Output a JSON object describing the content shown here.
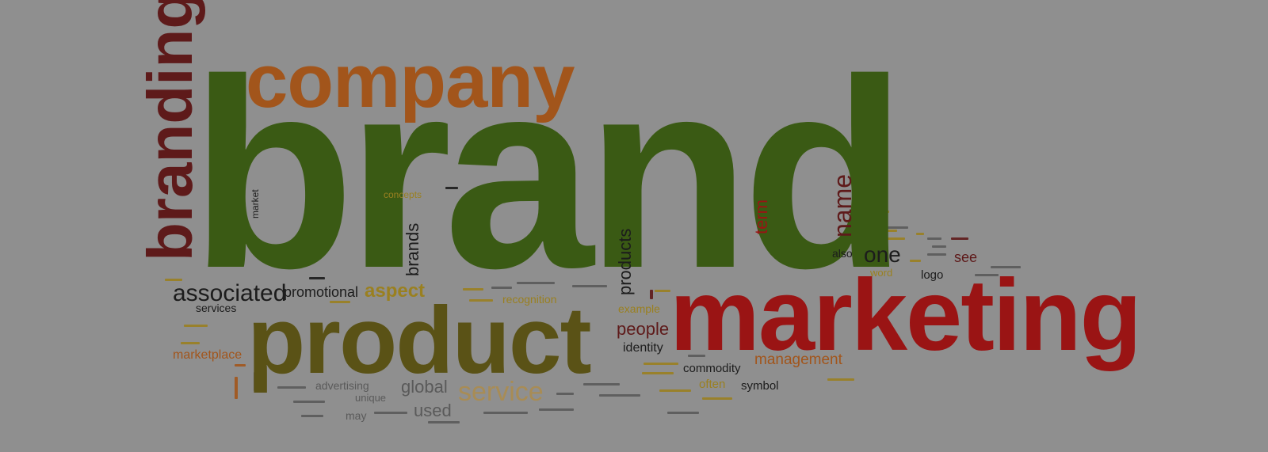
{
  "colors": {
    "background": "#8f8f8f",
    "green": "#3a5a14",
    "orange": "#a2551b",
    "darkred": "#5e1a1a",
    "red": "#9a1414",
    "olive": "#5a5216",
    "yellow": "#9a8020",
    "black": "#1c1c1c",
    "gray": "#5a5a5a"
  },
  "words": {
    "brand": "brand",
    "company": "company",
    "branding": "branding",
    "marketing": "marketing",
    "product": "product",
    "associated": "associated",
    "promotional": "promotional",
    "aspect": "aspect",
    "service": "service",
    "global": "global",
    "used": "used",
    "one": "one",
    "name": "name",
    "term": "term",
    "products": "products",
    "brands": "brands",
    "people": "people",
    "identity": "identity",
    "commodity": "commodity",
    "management": "management",
    "symbol": "symbol",
    "often": "often",
    "also": "also",
    "see": "see",
    "logo": "logo",
    "word": "word",
    "marketplace": "marketplace",
    "services": "services",
    "recognition": "recognition",
    "example": "example",
    "market": "market",
    "advertising": "advertising",
    "unique": "unique",
    "may": "may",
    "concepts": "concepts"
  }
}
